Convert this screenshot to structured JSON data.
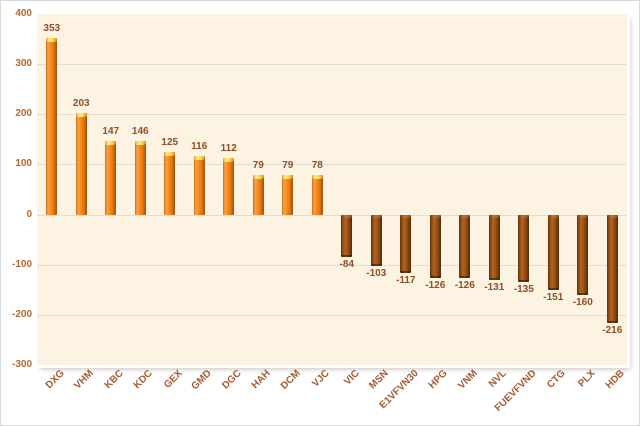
{
  "chart_data": {
    "type": "bar",
    "title": "",
    "xlabel": "",
    "ylabel": "",
    "categories": [
      "DXG",
      "VHM",
      "KBC",
      "KDC",
      "GEX",
      "GMD",
      "DGC",
      "HAH",
      "DCM",
      "VJC",
      "VIC",
      "MSN",
      "E1VFVN30",
      "HPG",
      "VNM",
      "NVL",
      "FUEVFVND",
      "CTG",
      "PLX",
      "HDB"
    ],
    "values": [
      353,
      203,
      147,
      146,
      125,
      116,
      112,
      79,
      79,
      78,
      -84,
      -103,
      -117,
      -126,
      -126,
      -131,
      -135,
      -151,
      -160,
      -216
    ],
    "ylim": [
      -300,
      400
    ],
    "yticks": [
      400,
      300,
      200,
      100,
      0,
      -100,
      -200,
      -300
    ],
    "grid": true,
    "legend": false,
    "data_labels": true
  },
  "style": {
    "plot_background": "#fcf3e2",
    "chart_background": "#ffffff",
    "gridline_color": "#e4ded2",
    "axis_tick_color": "#b5692f",
    "data_label_color": "#8e4e26",
    "category_label_color": "#a65b32",
    "positive_bar_color": "#f78c1e",
    "positive_bar_cap_color": "#ffd24a",
    "negative_bar_color": "#8f4b14",
    "negative_bar_cap_color": "#c87430"
  }
}
